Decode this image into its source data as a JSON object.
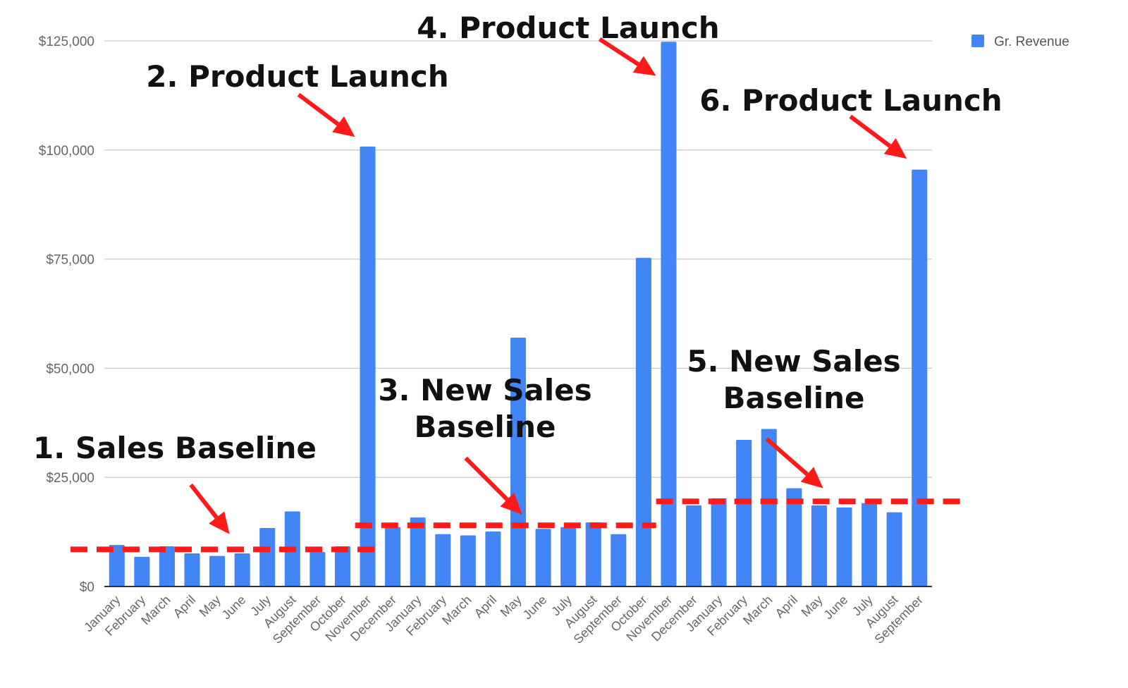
{
  "colors": {
    "bar": "#4285f4",
    "baseline": "#ff1a1a",
    "arrow": "#ff1a1a",
    "grid": "#cccccc",
    "axis": "#333333"
  },
  "chart_data": {
    "type": "bar",
    "legend": {
      "position": "top-right",
      "entries": [
        "Gr. Revenue"
      ]
    },
    "grid": true,
    "ylim": [
      0,
      125000
    ],
    "yticks": [
      "$0",
      "$25,000",
      "$50,000",
      "$75,000",
      "$100,000",
      "$125,000"
    ],
    "ytick_values": [
      0,
      25000,
      50000,
      75000,
      100000,
      125000
    ],
    "categories": [
      "January",
      "February",
      "March",
      "April",
      "May",
      "June",
      "July",
      "August",
      "September",
      "October",
      "November",
      "December",
      "January",
      "February",
      "March",
      "April",
      "May",
      "June",
      "July",
      "August",
      "September",
      "October",
      "November",
      "December",
      "January",
      "February",
      "March",
      "April",
      "May",
      "June",
      "July",
      "August",
      "September"
    ],
    "series": [
      {
        "name": "Gr. Revenue",
        "values": [
          9500,
          6800,
          9200,
          7600,
          7000,
          7600,
          13400,
          17200,
          7900,
          9200,
          100800,
          13600,
          15800,
          12000,
          11700,
          12600,
          57000,
          13200,
          13600,
          14700,
          12000,
          75300,
          124800,
          18600,
          20200,
          33600,
          36100,
          22500,
          18600,
          18100,
          19100,
          17000,
          95500
        ]
      }
    ],
    "baselines": [
      {
        "value": 8500,
        "from_index": 0,
        "to_index": 10
      },
      {
        "value": 14000,
        "from_index": 10,
        "to_index": 21
      },
      {
        "value": 19500,
        "from_index": 22,
        "to_index": 32
      }
    ],
    "annotations": [
      {
        "lines": [
          "1. Sales Baseline"
        ],
        "target_index": 5,
        "target_value": 12000
      },
      {
        "lines": [
          "2. Product Launch"
        ],
        "target_index": 10,
        "target_value": 103000
      },
      {
        "lines": [
          "3. New Sales",
          "Baseline"
        ],
        "target_index": 17,
        "target_value": 16500
      },
      {
        "lines": [
          "4. Product Launch"
        ],
        "target_index": 22,
        "target_value": 117000
      },
      {
        "lines": [
          "5. New Sales",
          "Baseline"
        ],
        "target_index": 29,
        "target_value": 22500
      },
      {
        "lines": [
          "6. Product Launch"
        ],
        "target_index": 32,
        "target_value": 98000
      }
    ]
  }
}
